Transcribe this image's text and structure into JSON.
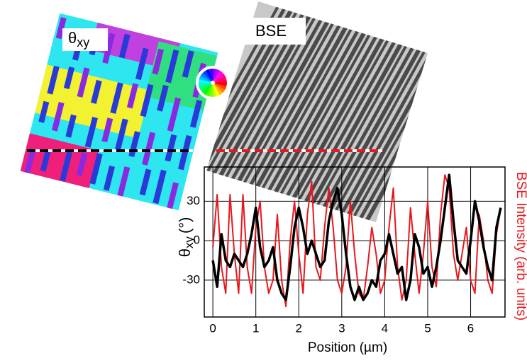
{
  "chart_data": {
    "type": "line",
    "panel_labels": [
      {
        "symbol": "θ",
        "subscript": "xy"
      },
      "BSE"
    ],
    "x_label": "Position (µm)",
    "y_label": {
      "symbol": "θ",
      "subscript": "xy",
      "unit": "(°)"
    },
    "y2_label": "BSE Intensity (arb. units)",
    "x": [
      0,
      0.1,
      0.2,
      0.3,
      0.4,
      0.5,
      0.6,
      0.7,
      0.8,
      0.9,
      1,
      1.1,
      1.2,
      1.3,
      1.4,
      1.5,
      1.6,
      1.7,
      1.8,
      1.9,
      2,
      2.1,
      2.2,
      2.3,
      2.4,
      2.5,
      2.6,
      2.7,
      2.8,
      2.9,
      3,
      3.1,
      3.2,
      3.3,
      3.4,
      3.5,
      3.6,
      3.7,
      3.8,
      3.9,
      4,
      4.1,
      4.2,
      4.3,
      4.4,
      4.5,
      4.6,
      4.7,
      4.8,
      4.9,
      5,
      5.1,
      5.2,
      5.3,
      5.4,
      5.5,
      5.6,
      5.7,
      5.8,
      5.9,
      6,
      6.1,
      6.2,
      6.3,
      6.4,
      6.5,
      6.6,
      6.7
    ],
    "series": [
      {
        "color": "#e8171c",
        "axis": "y2",
        "values": [
          -5,
          35,
          -20,
          -40,
          35,
          -10,
          -40,
          35,
          -20,
          -40,
          10,
          30,
          -20,
          -40,
          -30,
          20,
          -30,
          -50,
          0,
          30,
          -10,
          -40,
          20,
          45,
          -20,
          -30,
          10,
          40,
          10,
          -30,
          -40,
          -20,
          30,
          -10,
          -40,
          -45,
          -20,
          10,
          -10,
          -40,
          -30,
          10,
          40,
          -20,
          -45,
          -30,
          25,
          -10,
          -40,
          -10,
          30,
          -20,
          -35,
          20,
          50,
          40,
          -10,
          -30,
          -10,
          10,
          -30,
          -40,
          20,
          0,
          -30,
          -40,
          5,
          25
        ]
      },
      {
        "color": "#000000",
        "values": [
          -15,
          -35,
          5,
          -15,
          -20,
          -10,
          -15,
          -20,
          -10,
          5,
          25,
          -5,
          -20,
          -15,
          -5,
          -30,
          -40,
          -45,
          -20,
          10,
          25,
          10,
          -10,
          0,
          -10,
          -20,
          -15,
          15,
          30,
          40,
          20,
          -10,
          -35,
          -45,
          -35,
          -45,
          -40,
          -30,
          -35,
          -15,
          -10,
          5,
          -10,
          -25,
          -20,
          -45,
          -30,
          5,
          -5,
          -25,
          -20,
          -35,
          -20,
          0,
          25,
          50,
          15,
          -15,
          -20,
          -25,
          0,
          30,
          15,
          -5,
          -20,
          -30,
          10,
          25
        ]
      }
    ],
    "xlim": [
      -0.2,
      6.8
    ],
    "xticks": [
      0,
      1,
      2,
      3,
      4,
      5,
      6
    ],
    "ylim": [
      -58,
      56
    ],
    "yticks": [
      -30,
      0,
      30
    ],
    "y2lim": [
      -58,
      56
    ],
    "grid": true
  }
}
